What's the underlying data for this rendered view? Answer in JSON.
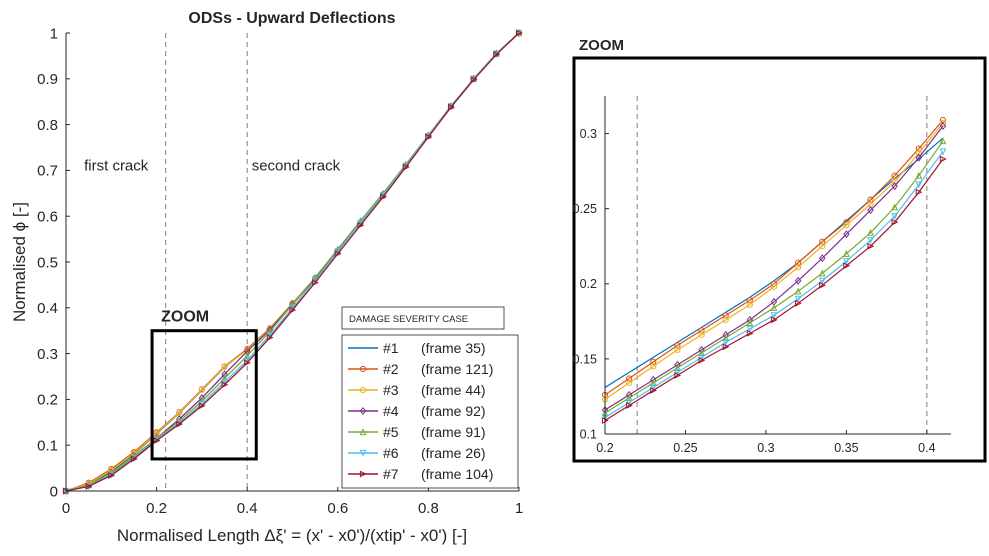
{
  "chart_data": [
    {
      "type": "line",
      "title": "ODSs - Upward Deflections",
      "xlabel": "Normalised Length Δξ' = (x' - x0')/(xtip' - x0')   [-]",
      "ylabel": "Normalised ϕ  [-]",
      "xlim": [
        0,
        1
      ],
      "ylim": [
        0,
        1
      ],
      "xticks": [
        "0",
        "0.2",
        "0.4",
        "0.6",
        "0.8",
        "1"
      ],
      "yticks": [
        "0",
        "0.1",
        "0.2",
        "0.3",
        "0.4",
        "0.5",
        "0.6",
        "0.7",
        "0.8",
        "0.9",
        "1"
      ],
      "vlines": [
        0.22,
        0.4
      ],
      "annotations": [
        {
          "text": "first crack",
          "x": 0.04,
          "y": 0.7
        },
        {
          "text": "second crack",
          "x": 0.41,
          "y": 0.7
        },
        {
          "text": "ZOOM",
          "x": 0.21,
          "y": 0.37
        }
      ],
      "zoom_box": {
        "x": [
          0.19,
          0.42
        ],
        "y": [
          0.07,
          0.35
        ]
      },
      "legend": {
        "title": "DAMAGE SEVERITY CASE",
        "position": "bottom-right",
        "entries": [
          {
            "label": "#1",
            "detail": "(frame 35)"
          },
          {
            "label": "#2",
            "detail": "(frame 121)"
          },
          {
            "label": "#3",
            "detail": "(frame 44)"
          },
          {
            "label": "#4",
            "detail": "(frame 92)"
          },
          {
            "label": "#5",
            "detail": "(frame 91)"
          },
          {
            "label": "#6",
            "detail": "(frame 26)"
          },
          {
            "label": "#7",
            "detail": "(frame 104)"
          }
        ]
      },
      "x": [
        0,
        0.05,
        0.1,
        0.15,
        0.2,
        0.25,
        0.3,
        0.35,
        0.4,
        0.45,
        0.5,
        0.55,
        0.6,
        0.65,
        0.7,
        0.75,
        0.8,
        0.85,
        0.9,
        0.95,
        1
      ],
      "series": [
        {
          "name": "#1",
          "values": [
            0,
            0.015,
            0.042,
            0.08,
            0.125,
            0.17,
            0.22,
            0.27,
            0.31,
            0.355,
            0.41,
            0.465,
            0.525,
            0.585,
            0.645,
            0.71,
            0.775,
            0.84,
            0.9,
            0.955,
            1.0
          ]
        },
        {
          "name": "#2",
          "values": [
            0,
            0.018,
            0.048,
            0.085,
            0.128,
            0.172,
            0.222,
            0.272,
            0.31,
            0.355,
            0.41,
            0.465,
            0.525,
            0.585,
            0.645,
            0.71,
            0.775,
            0.84,
            0.9,
            0.955,
            1.0
          ]
        },
        {
          "name": "#3",
          "values": [
            0,
            0.016,
            0.045,
            0.082,
            0.126,
            0.171,
            0.221,
            0.271,
            0.308,
            0.354,
            0.41,
            0.465,
            0.525,
            0.585,
            0.645,
            0.71,
            0.775,
            0.84,
            0.9,
            0.955,
            1.0
          ]
        },
        {
          "name": "#4",
          "values": [
            0,
            0.012,
            0.038,
            0.075,
            0.115,
            0.157,
            0.203,
            0.255,
            0.305,
            0.352,
            0.408,
            0.463,
            0.524,
            0.585,
            0.646,
            0.711,
            0.776,
            0.84,
            0.9,
            0.955,
            1.0
          ]
        },
        {
          "name": "#5",
          "values": [
            0,
            0.013,
            0.039,
            0.076,
            0.115,
            0.152,
            0.196,
            0.246,
            0.295,
            0.348,
            0.407,
            0.466,
            0.528,
            0.59,
            0.65,
            0.713,
            0.777,
            0.841,
            0.9,
            0.955,
            1.0
          ]
        },
        {
          "name": "#6",
          "values": [
            0,
            0.011,
            0.036,
            0.072,
            0.112,
            0.148,
            0.19,
            0.238,
            0.285,
            0.34,
            0.4,
            0.46,
            0.523,
            0.585,
            0.646,
            0.71,
            0.775,
            0.84,
            0.9,
            0.955,
            1.0
          ]
        },
        {
          "name": "#7",
          "values": [
            0,
            0.01,
            0.034,
            0.07,
            0.11,
            0.146,
            0.186,
            0.232,
            0.28,
            0.335,
            0.395,
            0.455,
            0.518,
            0.58,
            0.642,
            0.707,
            0.773,
            0.838,
            0.898,
            0.953,
            1.0
          ]
        }
      ],
      "colors": [
        "#0072bd",
        "#d95319",
        "#edb120",
        "#7e2f8e",
        "#77ac30",
        "#4dbeee",
        "#a2142f"
      ],
      "markers": [
        "none",
        "circle",
        "circle",
        "diamond",
        "triangle-up",
        "triangle-down",
        "triangle-right"
      ]
    },
    {
      "type": "line",
      "title": "ZOOM",
      "xlim": [
        0.2,
        0.415
      ],
      "ylim": [
        0.1,
        0.325
      ],
      "xticks": [
        "0.2",
        "0.25",
        "0.3",
        "0.35",
        "0.4"
      ],
      "yticks": [
        "0.1",
        "0.15",
        "0.2",
        "0.25",
        "0.3"
      ],
      "vlines": [
        0.22,
        0.4
      ],
      "x": [
        0.2,
        0.215,
        0.23,
        0.245,
        0.26,
        0.275,
        0.29,
        0.305,
        0.32,
        0.335,
        0.35,
        0.365,
        0.38,
        0.395,
        0.41
      ],
      "series": [
        {
          "name": "#1",
          "values": [
            0.131,
            0.141,
            0.151,
            0.161,
            0.171,
            0.181,
            0.191,
            0.202,
            0.214,
            0.228,
            0.242,
            0.256,
            0.27,
            0.283,
            0.297
          ]
        },
        {
          "name": "#2",
          "values": [
            0.126,
            0.137,
            0.148,
            0.159,
            0.169,
            0.179,
            0.189,
            0.2,
            0.214,
            0.228,
            0.241,
            0.256,
            0.272,
            0.29,
            0.309
          ]
        },
        {
          "name": "#3",
          "values": [
            0.123,
            0.134,
            0.145,
            0.156,
            0.166,
            0.176,
            0.186,
            0.198,
            0.211,
            0.225,
            0.239,
            0.253,
            0.268,
            0.287,
            0.307
          ]
        },
        {
          "name": "#4",
          "values": [
            0.116,
            0.126,
            0.136,
            0.146,
            0.156,
            0.166,
            0.176,
            0.188,
            0.202,
            0.217,
            0.233,
            0.249,
            0.265,
            0.284,
            0.305
          ]
        },
        {
          "name": "#5",
          "values": [
            0.114,
            0.124,
            0.134,
            0.144,
            0.154,
            0.164,
            0.174,
            0.184,
            0.195,
            0.207,
            0.22,
            0.234,
            0.251,
            0.272,
            0.295
          ]
        },
        {
          "name": "#6",
          "values": [
            0.111,
            0.121,
            0.131,
            0.141,
            0.151,
            0.161,
            0.17,
            0.179,
            0.19,
            0.202,
            0.215,
            0.229,
            0.245,
            0.266,
            0.288
          ]
        },
        {
          "name": "#7",
          "values": [
            0.109,
            0.119,
            0.129,
            0.139,
            0.149,
            0.158,
            0.167,
            0.176,
            0.187,
            0.199,
            0.212,
            0.225,
            0.241,
            0.261,
            0.283
          ]
        }
      ],
      "colors": [
        "#0072bd",
        "#d95319",
        "#edb120",
        "#7e2f8e",
        "#77ac30",
        "#4dbeee",
        "#a2142f"
      ],
      "markers": [
        "none",
        "circle",
        "circle",
        "diamond",
        "triangle-up",
        "triangle-down",
        "triangle-right"
      ]
    }
  ]
}
